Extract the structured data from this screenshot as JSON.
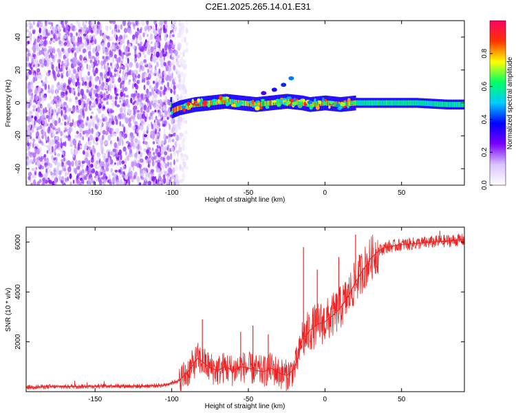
{
  "page": {
    "title": "C2E1.2025.265.14.01.E31"
  },
  "chart_data": [
    {
      "type": "heatmap",
      "name": "spectrogram",
      "title": "C2E1.2025.265.14.01.E31",
      "xlabel": "Height of straight line (km)",
      "ylabel": "Frequency (Hz)",
      "xlim": [
        -195,
        91
      ],
      "ylim": [
        -50,
        50
      ],
      "xticks": [
        -150,
        -100,
        -50,
        0,
        50
      ],
      "yticks": [
        -40,
        -20,
        0,
        20,
        40
      ],
      "noise_region_x": [
        -195,
        -90
      ],
      "signal_ridge": [
        {
          "x": -100,
          "f": -5
        },
        {
          "x": -95,
          "f": -3
        },
        {
          "x": -85,
          "f": -1
        },
        {
          "x": -75,
          "f": 0
        },
        {
          "x": -65,
          "f": 1
        },
        {
          "x": -55,
          "f": 0
        },
        {
          "x": -45,
          "f": -1
        },
        {
          "x": -35,
          "f": 0
        },
        {
          "x": -25,
          "f": 1
        },
        {
          "x": -15,
          "f": 0
        },
        {
          "x": -10,
          "f": -1
        },
        {
          "x": 0,
          "f": 0
        },
        {
          "x": 10,
          "f": -1
        },
        {
          "x": 20,
          "f": 0
        },
        {
          "x": 40,
          "f": 0
        },
        {
          "x": 60,
          "f": 0
        },
        {
          "x": 80,
          "f": -1
        },
        {
          "x": 91,
          "f": -1
        }
      ],
      "side_branch": [
        {
          "x": -40,
          "f": 6
        },
        {
          "x": -33,
          "f": 8
        },
        {
          "x": -27,
          "f": 11
        },
        {
          "x": -22,
          "f": 15
        }
      ],
      "colorbar": {
        "label": "Normalized spectral amplitude",
        "range": [
          0.0,
          1.0
        ],
        "ticks": [
          0.0,
          0.2,
          0.4,
          0.6,
          0.8
        ],
        "colors": [
          "#ffffff",
          "#d9c4ff",
          "#7b00ff",
          "#0000ff",
          "#00ccff",
          "#00ff66",
          "#ffff00",
          "#ff3300",
          "#ff0066"
        ]
      }
    },
    {
      "type": "line",
      "name": "snr",
      "xlabel": "Height of straight line (km)",
      "ylabel": "SNR (10 * v/v)",
      "xlim": [
        -195,
        91
      ],
      "ylim": [
        0,
        6600
      ],
      "xticks": [
        -150,
        -100,
        -50,
        0,
        50
      ],
      "yticks": [
        2000,
        4000,
        6000
      ],
      "series": [
        {
          "name": "SNR",
          "color": "#ee2222",
          "x": [
            -195,
            -180,
            -160,
            -140,
            -120,
            -105,
            -95,
            -88,
            -83,
            -80,
            -75,
            -70,
            -65,
            -60,
            -55,
            -50,
            -45,
            -40,
            -35,
            -30,
            -25,
            -20,
            -17,
            -15,
            -12,
            -10,
            -5,
            0,
            5,
            10,
            15,
            20,
            25,
            30,
            35,
            40,
            50,
            60,
            70,
            80,
            91
          ],
          "y": [
            180,
            200,
            210,
            230,
            220,
            260,
            450,
            900,
            1350,
            1200,
            950,
            850,
            1000,
            850,
            1000,
            950,
            850,
            800,
            950,
            750,
            650,
            900,
            1500,
            2100,
            2250,
            2450,
            2700,
            2800,
            3050,
            3350,
            3800,
            4400,
            4900,
            5350,
            5650,
            5800,
            5900,
            5950,
            6000,
            6050,
            6100
          ]
        }
      ],
      "spikes": [
        {
          "x": -80,
          "y": 2900
        },
        {
          "x": -55,
          "y": 2400
        },
        {
          "x": -47,
          "y": 2650
        },
        {
          "x": -37,
          "y": 2300
        },
        {
          "x": -14,
          "y": 5800
        },
        {
          "x": -5,
          "y": 4900
        },
        {
          "x": 9,
          "y": 5400
        },
        {
          "x": 20,
          "y": 6300
        },
        {
          "x": 75,
          "y": 6450
        }
      ]
    }
  ]
}
